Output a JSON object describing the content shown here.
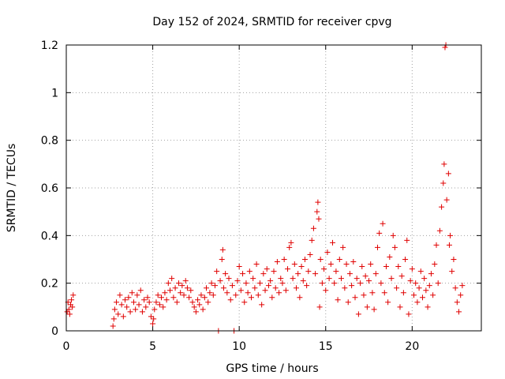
{
  "chart_data": {
    "type": "scatter",
    "title": "Day 152 of 2024, SRMTID for receiver cpvg",
    "xlabel": "GPS time / hours",
    "ylabel": "SRMTID / TECUs",
    "xlim": [
      0,
      24
    ],
    "ylim": [
      0,
      1.2
    ],
    "x_ticks": [
      0,
      5,
      10,
      15,
      20
    ],
    "x_tick_labels": [
      "0",
      "5",
      "10",
      "15",
      "20"
    ],
    "y_ticks": [
      0,
      0.2,
      0.4,
      0.6,
      0.8,
      1.0,
      1.2
    ],
    "y_tick_labels": [
      "0",
      "0.2",
      "0.4",
      "0.6",
      "0.8",
      "1",
      "1.2"
    ],
    "grid": true,
    "marker": "plus",
    "color": "#e00000",
    "series": [
      {
        "name": "cpvg",
        "points": [
          [
            0.05,
            0.08
          ],
          [
            0.1,
            0.12
          ],
          [
            0.15,
            0.09
          ],
          [
            0.2,
            0.07
          ],
          [
            0.25,
            0.11
          ],
          [
            0.3,
            0.13
          ],
          [
            0.35,
            0.1
          ],
          [
            0.4,
            0.15
          ],
          [
            2.7,
            0.02
          ],
          [
            2.75,
            0.05
          ],
          [
            2.8,
            0.09
          ],
          [
            2.9,
            0.12
          ],
          [
            3.0,
            0.07
          ],
          [
            3.1,
            0.15
          ],
          [
            3.2,
            0.11
          ],
          [
            3.3,
            0.06
          ],
          [
            3.4,
            0.13
          ],
          [
            3.5,
            0.1
          ],
          [
            3.6,
            0.14
          ],
          [
            3.7,
            0.08
          ],
          [
            3.8,
            0.16
          ],
          [
            3.9,
            0.12
          ],
          [
            4.0,
            0.09
          ],
          [
            4.1,
            0.15
          ],
          [
            4.2,
            0.11
          ],
          [
            4.3,
            0.17
          ],
          [
            4.4,
            0.08
          ],
          [
            4.5,
            0.13
          ],
          [
            4.6,
            0.1
          ],
          [
            4.7,
            0.14
          ],
          [
            4.8,
            0.12
          ],
          [
            4.9,
            0.06
          ],
          [
            5.0,
            0.03
          ],
          [
            5.05,
            0.05
          ],
          [
            5.1,
            0.09
          ],
          [
            5.2,
            0.12
          ],
          [
            5.3,
            0.15
          ],
          [
            5.4,
            0.11
          ],
          [
            5.5,
            0.14
          ],
          [
            5.6,
            0.1
          ],
          [
            5.7,
            0.16
          ],
          [
            5.8,
            0.13
          ],
          [
            5.9,
            0.2
          ],
          [
            6.0,
            0.17
          ],
          [
            6.1,
            0.22
          ],
          [
            6.2,
            0.14
          ],
          [
            6.3,
            0.18
          ],
          [
            6.4,
            0.12
          ],
          [
            6.5,
            0.2
          ],
          [
            6.6,
            0.16
          ],
          [
            6.7,
            0.19
          ],
          [
            6.8,
            0.15
          ],
          [
            6.9,
            0.21
          ],
          [
            7.0,
            0.18
          ],
          [
            7.1,
            0.14
          ],
          [
            7.2,
            0.17
          ],
          [
            7.3,
            0.12
          ],
          [
            7.4,
            0.1
          ],
          [
            7.5,
            0.08
          ],
          [
            7.6,
            0.13
          ],
          [
            7.7,
            0.11
          ],
          [
            7.8,
            0.15
          ],
          [
            7.9,
            0.09
          ],
          [
            8.0,
            0.14
          ],
          [
            8.1,
            0.18
          ],
          [
            8.2,
            0.12
          ],
          [
            8.3,
            0.16
          ],
          [
            8.4,
            0.2
          ],
          [
            8.5,
            0.15
          ],
          [
            8.6,
            0.19
          ],
          [
            8.7,
            0.25
          ],
          [
            8.8,
            0.0
          ],
          [
            8.9,
            0.21
          ],
          [
            9.0,
            0.3
          ],
          [
            9.05,
            0.34
          ],
          [
            9.1,
            0.18
          ],
          [
            9.2,
            0.24
          ],
          [
            9.3,
            0.16
          ],
          [
            9.4,
            0.22
          ],
          [
            9.5,
            0.13
          ],
          [
            9.6,
            0.19
          ],
          [
            9.7,
            0.0
          ],
          [
            9.8,
            0.15
          ],
          [
            9.9,
            0.21
          ],
          [
            10.0,
            0.27
          ],
          [
            10.1,
            0.17
          ],
          [
            10.2,
            0.24
          ],
          [
            10.3,
            0.12
          ],
          [
            10.4,
            0.2
          ],
          [
            10.5,
            0.16
          ],
          [
            10.6,
            0.25
          ],
          [
            10.7,
            0.14
          ],
          [
            10.8,
            0.22
          ],
          [
            10.9,
            0.18
          ],
          [
            11.0,
            0.28
          ],
          [
            11.1,
            0.15
          ],
          [
            11.2,
            0.2
          ],
          [
            11.3,
            0.11
          ],
          [
            11.4,
            0.24
          ],
          [
            11.5,
            0.17
          ],
          [
            11.6,
            0.26
          ],
          [
            11.7,
            0.19
          ],
          [
            11.8,
            0.21
          ],
          [
            11.9,
            0.14
          ],
          [
            12.0,
            0.25
          ],
          [
            12.1,
            0.18
          ],
          [
            12.2,
            0.29
          ],
          [
            12.3,
            0.16
          ],
          [
            12.4,
            0.22
          ],
          [
            12.5,
            0.2
          ],
          [
            12.6,
            0.3
          ],
          [
            12.7,
            0.17
          ],
          [
            12.8,
            0.26
          ],
          [
            12.9,
            0.35
          ],
          [
            13.0,
            0.37
          ],
          [
            13.1,
            0.22
          ],
          [
            13.2,
            0.28
          ],
          [
            13.3,
            0.18
          ],
          [
            13.4,
            0.24
          ],
          [
            13.5,
            0.14
          ],
          [
            13.6,
            0.27
          ],
          [
            13.7,
            0.21
          ],
          [
            13.8,
            0.3
          ],
          [
            13.9,
            0.19
          ],
          [
            14.0,
            0.25
          ],
          [
            14.1,
            0.32
          ],
          [
            14.2,
            0.38
          ],
          [
            14.3,
            0.43
          ],
          [
            14.4,
            0.24
          ],
          [
            14.5,
            0.5
          ],
          [
            14.55,
            0.54
          ],
          [
            14.6,
            0.47
          ],
          [
            14.65,
            0.1
          ],
          [
            14.7,
            0.3
          ],
          [
            14.8,
            0.2
          ],
          [
            14.9,
            0.26
          ],
          [
            15.0,
            0.17
          ],
          [
            15.1,
            0.33
          ],
          [
            15.2,
            0.22
          ],
          [
            15.3,
            0.28
          ],
          [
            15.4,
            0.37
          ],
          [
            15.5,
            0.2
          ],
          [
            15.6,
            0.25
          ],
          [
            15.7,
            0.13
          ],
          [
            15.8,
            0.3
          ],
          [
            15.9,
            0.22
          ],
          [
            16.0,
            0.35
          ],
          [
            16.1,
            0.18
          ],
          [
            16.2,
            0.28
          ],
          [
            16.3,
            0.12
          ],
          [
            16.4,
            0.24
          ],
          [
            16.5,
            0.19
          ],
          [
            16.6,
            0.29
          ],
          [
            16.7,
            0.14
          ],
          [
            16.8,
            0.22
          ],
          [
            16.9,
            0.07
          ],
          [
            17.0,
            0.2
          ],
          [
            17.1,
            0.27
          ],
          [
            17.2,
            0.15
          ],
          [
            17.3,
            0.23
          ],
          [
            17.4,
            0.1
          ],
          [
            17.5,
            0.21
          ],
          [
            17.6,
            0.28
          ],
          [
            17.7,
            0.16
          ],
          [
            17.8,
            0.09
          ],
          [
            17.9,
            0.24
          ],
          [
            18.0,
            0.35
          ],
          [
            18.1,
            0.41
          ],
          [
            18.2,
            0.2
          ],
          [
            18.3,
            0.45
          ],
          [
            18.4,
            0.16
          ],
          [
            18.5,
            0.27
          ],
          [
            18.6,
            0.12
          ],
          [
            18.7,
            0.31
          ],
          [
            18.8,
            0.22
          ],
          [
            18.9,
            0.4
          ],
          [
            19.0,
            0.35
          ],
          [
            19.1,
            0.18
          ],
          [
            19.2,
            0.27
          ],
          [
            19.3,
            0.1
          ],
          [
            19.4,
            0.23
          ],
          [
            19.5,
            0.16
          ],
          [
            19.6,
            0.3
          ],
          [
            19.7,
            0.38
          ],
          [
            19.8,
            0.07
          ],
          [
            19.9,
            0.21
          ],
          [
            20.0,
            0.26
          ],
          [
            20.1,
            0.15
          ],
          [
            20.2,
            0.2
          ],
          [
            20.3,
            0.12
          ],
          [
            20.4,
            0.18
          ],
          [
            20.5,
            0.25
          ],
          [
            20.6,
            0.14
          ],
          [
            20.7,
            0.22
          ],
          [
            20.8,
            0.17
          ],
          [
            20.9,
            0.1
          ],
          [
            21.0,
            0.19
          ],
          [
            21.1,
            0.24
          ],
          [
            21.2,
            0.15
          ],
          [
            21.3,
            0.28
          ],
          [
            21.4,
            0.36
          ],
          [
            21.5,
            0.2
          ],
          [
            21.6,
            0.42
          ],
          [
            21.7,
            0.52
          ],
          [
            21.8,
            0.62
          ],
          [
            21.85,
            0.7
          ],
          [
            21.9,
            1.19
          ],
          [
            21.95,
            1.2
          ],
          [
            22.0,
            0.55
          ],
          [
            22.1,
            0.66
          ],
          [
            22.15,
            0.36
          ],
          [
            22.2,
            0.4
          ],
          [
            22.3,
            0.25
          ],
          [
            22.4,
            0.3
          ],
          [
            22.5,
            0.18
          ],
          [
            22.6,
            0.12
          ],
          [
            22.7,
            0.08
          ],
          [
            22.8,
            0.15
          ],
          [
            22.9,
            0.19
          ]
        ]
      }
    ]
  }
}
